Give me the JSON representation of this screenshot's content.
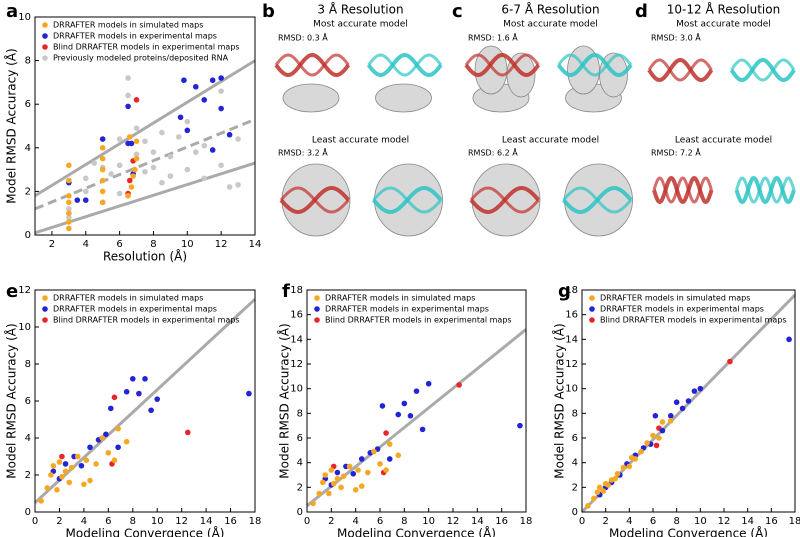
{
  "chart_data": [
    {
      "type": "scatter",
      "panel_letter": "a",
      "x_label": "Resolution (Å)",
      "y_label": "Model RMSD Accuracy (Å)",
      "xlim": [
        1,
        14
      ],
      "ylim": [
        0,
        10
      ],
      "xticks": [
        2,
        4,
        6,
        8,
        10,
        12,
        14
      ],
      "yticks": [
        0,
        2,
        4,
        6,
        8,
        10
      ],
      "legend": "upper left",
      "series": [
        {
          "name": "DRRAFTER models in simulated maps",
          "color": "#f7a823",
          "x": [
            3,
            3,
            3,
            3,
            3,
            3,
            3,
            5,
            5,
            5,
            5,
            5,
            5,
            6.5,
            6.7,
            6.8,
            6.9,
            7,
            7,
            6.6
          ],
          "y": [
            0.3,
            0.6,
            1.0,
            1.5,
            1.8,
            2.5,
            3.2,
            1.5,
            2.0,
            2.5,
            3.0,
            3.5,
            4.0,
            1.8,
            2.2,
            2.7,
            3.0,
            3.5,
            4.3,
            4.5
          ]
        },
        {
          "name": "DRRAFTER models in experimental maps",
          "color": "#2323d8",
          "x": [
            3,
            3.5,
            4,
            5,
            6.5,
            6.5,
            6.7,
            9.6,
            9.8,
            10,
            10.5,
            11,
            11.5,
            12,
            12,
            12.5,
            11.5,
            6.8
          ],
          "y": [
            2.4,
            1.6,
            1.6,
            4.4,
            5.9,
            4.2,
            4.2,
            5.4,
            7.1,
            4.8,
            6.8,
            6.2,
            7.1,
            7.2,
            5.8,
            4.6,
            3.9,
            2.8
          ]
        },
        {
          "name": "Blind DRRAFTER models in experimental maps",
          "color": "#e8262a",
          "x": [
            6.5,
            6.8,
            7,
            6.6
          ],
          "y": [
            1.9,
            3.4,
            6.2,
            2.5
          ]
        },
        {
          "name": "Previously modeled proteins/deposited RNA",
          "color": "#c8c8c8",
          "x": [
            3,
            3,
            4,
            4,
            4.5,
            5,
            5,
            5.5,
            6,
            6,
            6.5,
            6.5,
            7,
            7,
            7.5,
            7.5,
            8,
            8,
            8.5,
            8.5,
            9,
            9,
            9.5,
            10,
            10,
            10.5,
            11,
            11,
            12,
            12,
            12.5,
            13,
            13,
            6
          ],
          "y": [
            0.8,
            1.2,
            2.0,
            2.6,
            3.3,
            1.5,
            3.1,
            2.8,
            3.2,
            1.9,
            6.4,
            7.2,
            4.9,
            3.7,
            2.9,
            4.3,
            3.1,
            3.8,
            2.4,
            4.7,
            3.6,
            2.7,
            4.5,
            3.0,
            5.2,
            3.8,
            4.1,
            2.6,
            3.2,
            6.6,
            2.2,
            4.4,
            2.3,
            4.4
          ]
        }
      ],
      "fit_lines": [
        {
          "x": [
            1,
            14
          ],
          "y": [
            1.8,
            8.0
          ],
          "dashed": false
        },
        {
          "x": [
            1,
            14
          ],
          "y": [
            1.2,
            5.3
          ],
          "dashed": true
        },
        {
          "x": [
            1,
            14
          ],
          "y": [
            0.1,
            3.3
          ],
          "dashed": false
        }
      ]
    },
    {
      "type": "scatter",
      "panel_letter": "e",
      "x_label": "Modeling Convergence (Å)",
      "y_label": "Model RMSD Accuracy (Å)",
      "xlim": [
        0,
        18
      ],
      "ylim": [
        0,
        12
      ],
      "xticks": [
        0,
        2,
        4,
        6,
        8,
        10,
        12,
        14,
        16,
        18
      ],
      "yticks": [
        0,
        2,
        4,
        6,
        8,
        10,
        12
      ],
      "legend": "upper left",
      "series": [
        {
          "name": "DRRAFTER models in simulated maps",
          "color": "#f7a823",
          "x": [
            0.5,
            1,
            1.3,
            1.5,
            1.8,
            2,
            2.2,
            2.5,
            2.8,
            3,
            3.5,
            4,
            4.2,
            4.5,
            5,
            5.5,
            6,
            6.5,
            6.8,
            7.5
          ],
          "y": [
            0.6,
            1.3,
            2.0,
            2.5,
            1.2,
            2.7,
            1.9,
            2.2,
            1.6,
            2.4,
            3.0,
            1.5,
            2.8,
            1.7,
            2.6,
            4.0,
            3.2,
            2.8,
            4.5,
            3.8
          ]
        },
        {
          "name": "DRRAFTER models in experimental maps",
          "color": "#2323d8",
          "x": [
            1.5,
            2,
            2.5,
            3.2,
            3.8,
            4.5,
            5.2,
            5.8,
            6.2,
            6.8,
            7.5,
            8,
            8.5,
            9,
            9.5,
            10,
            17.5
          ],
          "y": [
            2.2,
            1.8,
            2.6,
            3.0,
            2.5,
            3.5,
            3.9,
            4.2,
            5.6,
            3.5,
            6.5,
            7.2,
            6.4,
            7.2,
            5.5,
            6.1,
            6.4
          ]
        },
        {
          "name": "Blind DRRAFTER models in experimental maps",
          "color": "#e8262a",
          "x": [
            2.2,
            6.5,
            6.3,
            12.5
          ],
          "y": [
            3.0,
            6.2,
            2.6,
            4.3
          ]
        }
      ],
      "fit_lines": [
        {
          "x": [
            0,
            18
          ],
          "y": [
            0.5,
            11.5
          ],
          "dashed": false
        }
      ]
    },
    {
      "type": "scatter",
      "panel_letter": "f",
      "x_label": "Modeling Convergence (Å)",
      "y_label": "Model RMSD Accuracy (Å)",
      "xlim": [
        0,
        18
      ],
      "ylim": [
        0,
        18
      ],
      "xticks": [
        0,
        2,
        4,
        6,
        8,
        10,
        12,
        14,
        16,
        18
      ],
      "yticks": [
        0,
        2,
        4,
        6,
        8,
        10,
        12,
        14,
        16,
        18
      ],
      "legend": "upper left",
      "series": [
        {
          "name": "DRRAFTER models in simulated maps",
          "color": "#f7a823",
          "x": [
            0.5,
            1,
            1.3,
            1.5,
            1.8,
            2,
            2.2,
            2.5,
            2.8,
            3,
            3.5,
            4,
            4.2,
            4.5,
            5,
            5.5,
            6,
            6.5,
            6.8,
            7.5
          ],
          "y": [
            0.7,
            1.5,
            2.4,
            3.0,
            1.5,
            3.4,
            2.3,
            2.7,
            2.0,
            2.9,
            3.7,
            1.8,
            3.4,
            2.1,
            3.2,
            4.9,
            3.9,
            3.4,
            5.5,
            4.6
          ]
        },
        {
          "name": "DRRAFTER models in experimental maps",
          "color": "#2323d8",
          "x": [
            1.5,
            2,
            2.5,
            3.2,
            3.8,
            4.5,
            5.2,
            5.8,
            6.2,
            6.8,
            7.5,
            8,
            8.5,
            9,
            9.5,
            10,
            17.5
          ],
          "y": [
            2.7,
            2.2,
            3.2,
            3.7,
            3.1,
            4.3,
            4.8,
            5.1,
            8.6,
            4.3,
            7.9,
            8.8,
            7.8,
            9.8,
            6.7,
            10.4,
            7.0
          ]
        },
        {
          "name": "Blind DRRAFTER models in experimental maps",
          "color": "#e8262a",
          "x": [
            2.2,
            6.5,
            6.3,
            12.5
          ],
          "y": [
            3.7,
            6.4,
            3.2,
            10.3
          ]
        }
      ],
      "fit_lines": [
        {
          "x": [
            0,
            18
          ],
          "y": [
            0.5,
            14.8
          ],
          "dashed": false
        }
      ]
    },
    {
      "type": "scatter",
      "panel_letter": "g",
      "x_label": "Modeling Convergence (Å)",
      "y_label": "Model RMSD Accuracy (Å)",
      "xlim": [
        0,
        18
      ],
      "ylim": [
        0,
        18
      ],
      "xticks": [
        0,
        2,
        4,
        6,
        8,
        10,
        12,
        14,
        16,
        18
      ],
      "yticks": [
        0,
        2,
        4,
        6,
        8,
        10,
        12,
        14,
        16,
        18
      ],
      "legend": "upper left",
      "series": [
        {
          "name": "DRRAFTER models in simulated maps",
          "color": "#f7a823",
          "x": [
            0.5,
            1,
            1.3,
            1.5,
            1.8,
            2,
            2.2,
            2.5,
            2.8,
            3,
            3.5,
            4,
            4.2,
            4.5,
            5,
            5.5,
            6,
            6.5,
            6.8,
            7.5
          ],
          "y": [
            0.5,
            1.1,
            1.6,
            2.0,
            1.7,
            2.3,
            2.2,
            2.6,
            2.7,
            3.1,
            3.6,
            3.7,
            4.4,
            4.3,
            4.9,
            5.6,
            6.2,
            6.0,
            7.3,
            7.4
          ]
        },
        {
          "name": "DRRAFTER models in experimental maps",
          "color": "#2323d8",
          "x": [
            1.5,
            2,
            2.5,
            3.2,
            3.8,
            4.5,
            5.2,
            5.8,
            6.2,
            6.8,
            7.5,
            8,
            8.5,
            9,
            9.5,
            10,
            17.5
          ],
          "y": [
            1.4,
            2.0,
            2.4,
            3.0,
            3.9,
            4.6,
            5.2,
            5.5,
            7.8,
            6.6,
            7.8,
            8.9,
            8.4,
            9.0,
            9.8,
            10.0,
            14.0
          ]
        },
        {
          "name": "Blind DRRAFTER models in experimental maps",
          "color": "#e8262a",
          "x": [
            2.2,
            6.5,
            6.3,
            12.5
          ],
          "y": [
            2.2,
            6.8,
            5.4,
            12.2
          ]
        }
      ],
      "fit_lines": [
        {
          "x": [
            0,
            18
          ],
          "y": [
            0,
            17.6
          ],
          "dashed": false
        }
      ]
    }
  ],
  "structure_panels": [
    {
      "letter": "b",
      "title": "3 Å Resolution",
      "top_label": "Most accurate model",
      "top_rmsd": "RMSD: 0.3 Å",
      "bottom_label": "Least accurate model",
      "bottom_rmsd": "RMSD: 3.2 Å"
    },
    {
      "letter": "c",
      "title": "6-7 Å Resolution",
      "top_label": "Most accurate model",
      "top_rmsd": "RMSD: 1.6 Å",
      "bottom_label": "Least accurate model",
      "bottom_rmsd": "RMSD: 6.2 Å"
    },
    {
      "letter": "d",
      "title": "10-12 Å Resolution",
      "top_label": "Most accurate model",
      "top_rmsd": "RMSD: 3.0 Å",
      "bottom_label": "Least accurate model",
      "bottom_rmsd": "RMSD: 7.2 Å"
    }
  ]
}
